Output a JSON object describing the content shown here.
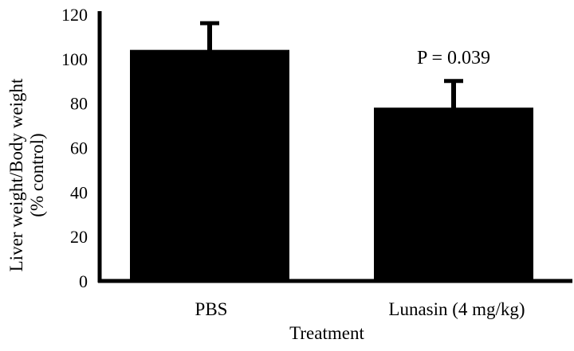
{
  "chart_data": {
    "type": "bar",
    "title": "",
    "xlabel": "Treatment",
    "ylabel_lines": [
      "Liver weight/Body weight",
      "(% control)"
    ],
    "categories": [
      "PBS",
      "Lunasin (4 mg/kg)"
    ],
    "values": [
      104,
      78
    ],
    "errors": [
      12,
      12
    ],
    "ylim": [
      0,
      120
    ],
    "yticks": [
      0,
      20,
      40,
      60,
      80,
      100,
      120
    ],
    "bar_color": "#000000",
    "grid": false,
    "annotations": [
      {
        "text": "P = 0.039",
        "category_index": 1
      }
    ]
  }
}
